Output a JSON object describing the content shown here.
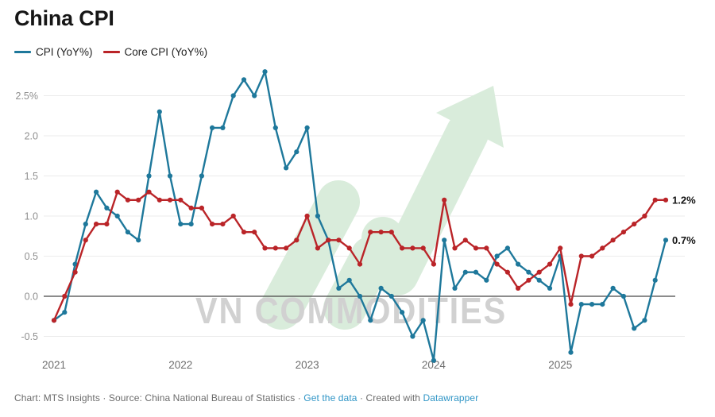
{
  "header": {
    "title": "China CPI"
  },
  "legend": [
    {
      "label": "CPI (YoY%)",
      "color": "#1e789b"
    },
    {
      "label": "Core CPI (YoY%)",
      "color": "#ba2428"
    }
  ],
  "chart_data": {
    "type": "line",
    "title": "China CPI",
    "x_unit": "month",
    "x_range": [
      "2021-01",
      "2025-11"
    ],
    "x_tick_labels": [
      "2021",
      "2022",
      "2023",
      "2024",
      "2025"
    ],
    "y_ticks": [
      2.5,
      2.0,
      1.5,
      1.0,
      0.5,
      0.0,
      -0.5
    ],
    "y_tick_labels": [
      "2.5%",
      "2.0",
      "1.5",
      "1.0",
      "0.5",
      "0.0",
      "-0.5"
    ],
    "ylim": [
      -0.9,
      2.9
    ],
    "grid": "horizontal",
    "zero_line": true,
    "legend_position": "top-left",
    "series": [
      {
        "name": "CPI (YoY%)",
        "color": "#1e789b",
        "end_label": "0.7%",
        "values": [
          -0.3,
          -0.2,
          0.4,
          0.9,
          1.3,
          1.1,
          1.0,
          0.8,
          0.7,
          1.5,
          2.3,
          1.5,
          0.9,
          0.9,
          1.5,
          2.1,
          2.1,
          2.5,
          2.7,
          2.5,
          2.8,
          2.1,
          1.6,
          1.8,
          2.1,
          1.0,
          0.7,
          0.1,
          0.2,
          0.0,
          -0.3,
          0.1,
          0.0,
          -0.2,
          -0.5,
          -0.3,
          -0.8,
          0.7,
          0.1,
          0.3,
          0.3,
          0.2,
          0.5,
          0.6,
          0.4,
          0.3,
          0.2,
          0.1,
          0.5,
          -0.7,
          -0.1,
          -0.1,
          -0.1,
          0.1,
          0.0,
          -0.4,
          -0.3,
          0.2,
          0.7
        ]
      },
      {
        "name": "Core CPI (YoY%)",
        "color": "#ba2428",
        "end_label": "1.2%",
        "values": [
          -0.3,
          0.0,
          0.3,
          0.7,
          0.9,
          0.9,
          1.3,
          1.2,
          1.2,
          1.3,
          1.2,
          1.2,
          1.2,
          1.1,
          1.1,
          0.9,
          0.9,
          1.0,
          0.8,
          0.8,
          0.6,
          0.6,
          0.6,
          0.7,
          1.0,
          0.6,
          0.7,
          0.7,
          0.6,
          0.4,
          0.8,
          0.8,
          0.8,
          0.6,
          0.6,
          0.6,
          0.4,
          1.2,
          0.6,
          0.7,
          0.6,
          0.6,
          0.4,
          0.3,
          0.1,
          0.2,
          0.3,
          0.4,
          0.6,
          -0.1,
          0.5,
          0.5,
          0.6,
          0.7,
          0.8,
          0.9,
          1.0,
          1.2,
          1.2
        ]
      }
    ]
  },
  "watermark": {
    "text": "VN COMMODITIES",
    "arrow_color": "#d9ecdb",
    "text_color": "#d1d1d1"
  },
  "styles": {
    "grid_color": "#ebebeb",
    "zero_line_color": "#474747",
    "y_label_color": "#8f8f8f",
    "x_label_color": "#6e6e6e",
    "end_label_color": "#141414"
  },
  "footer": {
    "prefix": "Chart: MTS Insights · Source: China National Bureau of Statistics · ",
    "link1": "Get the data",
    "mid": " · Created with ",
    "link2": "Datawrapper",
    "link_color": "#2f95c6"
  }
}
